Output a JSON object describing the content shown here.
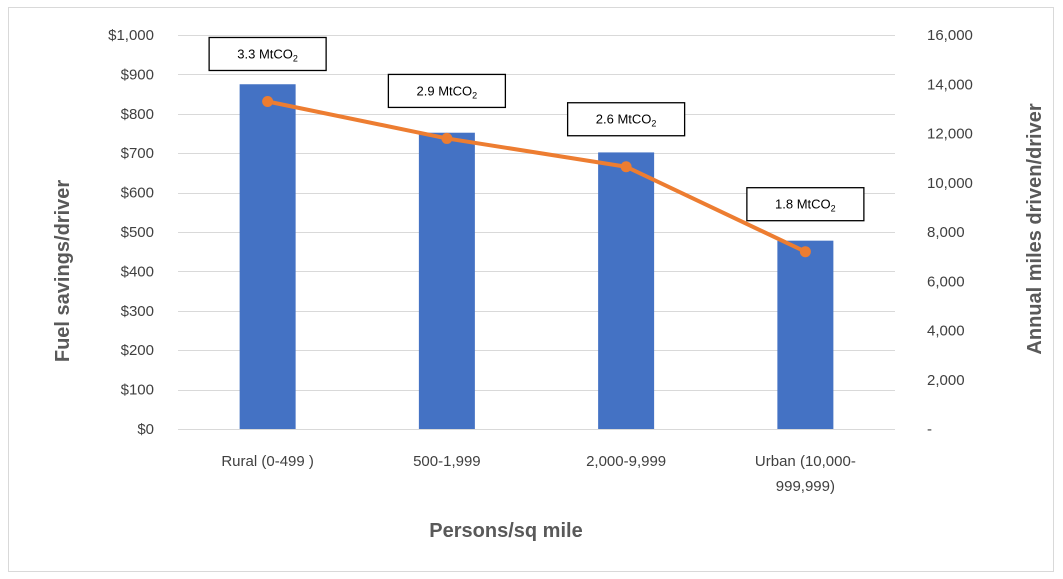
{
  "chart_data": {
    "type": "bar",
    "categories": [
      "Rural (0-499 )",
      "500-1,999",
      "2,000-9,999",
      "Urban (10,000-999,999)"
    ],
    "category_lines": [
      [
        "Rural (0-499 )"
      ],
      [
        "500-1,999"
      ],
      [
        "2,000-9,999"
      ],
      [
        "Urban (10,000-",
        "999,999)"
      ]
    ],
    "xlabel": "Persons/sq mile",
    "ylabel": "Fuel savings/driver",
    "y2label": "Annual miles driven/driver",
    "ylim": [
      0,
      1000
    ],
    "y2lim": [
      0,
      16000
    ],
    "yticks": [
      "$0",
      "$100",
      "$200",
      "$300",
      "$400",
      "$500",
      "$600",
      "$700",
      "$800",
      "$900",
      "$1,000"
    ],
    "y2ticks": [
      "-",
      "2,000",
      "4,000",
      "6,000",
      "8,000",
      "10,000",
      "12,000",
      "14,000",
      "16,000"
    ],
    "series": [
      {
        "type": "bar",
        "axis": "left",
        "color": "#4472c4",
        "values": [
          875,
          752,
          702,
          478
        ]
      },
      {
        "type": "line",
        "axis": "right",
        "color": "#ed7d31",
        "values": [
          13300,
          11800,
          10650,
          7200
        ]
      }
    ],
    "annotations": [
      {
        "text": "3.3 MtCO",
        "sub": "2"
      },
      {
        "text": "2.9 MtCO",
        "sub": "2"
      },
      {
        "text": "2.6 MtCO",
        "sub": "2"
      },
      {
        "text": "1.8 MtCO",
        "sub": "2"
      }
    ],
    "grid": true,
    "legend": "none"
  }
}
